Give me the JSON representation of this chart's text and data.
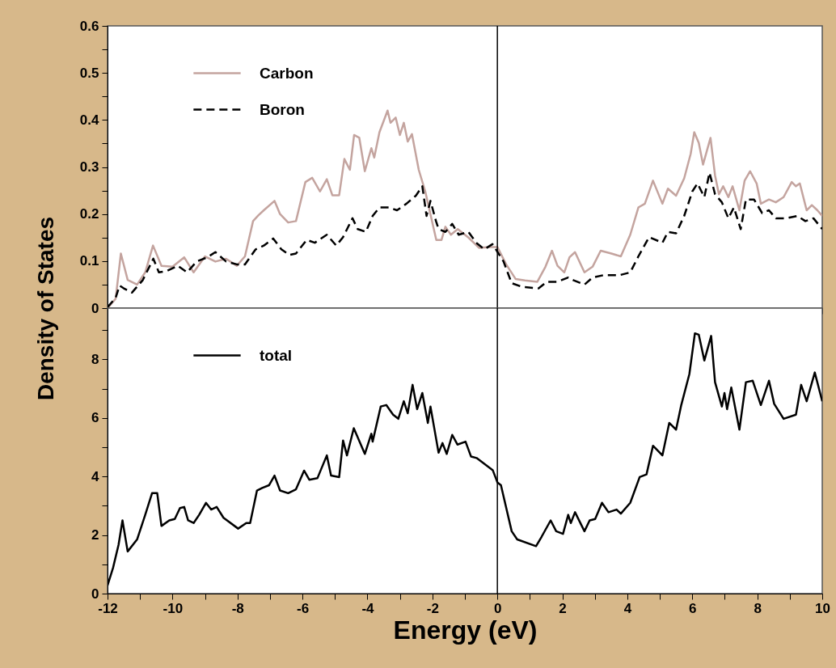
{
  "chart_data": [
    {
      "type": "line",
      "ylabel": "Density of States",
      "legend": "top left",
      "tick_labels": "y",
      "xlim": [
        -12,
        10
      ],
      "ylim": [
        0,
        0.6
      ],
      "xticks": [
        -12,
        {
          "value": -11,
          "label": null
        },
        -10,
        {
          "value": -9,
          "label": null
        },
        -8,
        {
          "value": -7,
          "label": null
        },
        -6,
        {
          "value": -5,
          "label": null
        },
        -4,
        {
          "value": -3,
          "label": null
        },
        -2,
        {
          "value": -1,
          "label": null
        },
        0,
        {
          "value": 1,
          "label": null
        },
        2,
        {
          "value": 3,
          "label": null
        },
        4,
        {
          "value": 5,
          "label": null
        },
        6,
        {
          "value": 7,
          "label": null
        },
        8,
        {
          "value": 9,
          "label": null
        },
        10
      ],
      "yticks": [
        0,
        {
          "value": 0.05,
          "label": null
        },
        0.1,
        {
          "value": 0.15,
          "label": null
        },
        0.2,
        {
          "value": 0.25,
          "label": null
        },
        0.3,
        {
          "value": 0.35,
          "label": null
        },
        0.4,
        {
          "value": 0.45,
          "label": null
        },
        0.5,
        {
          "value": 0.55,
          "label": null
        },
        0.6
      ],
      "ref_lines": [
        {
          "axis": "x",
          "value": 0,
          "color": "#000000"
        }
      ],
      "series": [
        {
          "name": "Carbon",
          "color": "#c4a49f",
          "line_style": "solid",
          "x": [
            -12,
            -11.75,
            -11.59,
            -11.38,
            -11.09,
            -10.84,
            -10.6,
            -10.34,
            -10,
            -9.64,
            -9.35,
            -9,
            -8.68,
            -8.35,
            -8.02,
            -7.77,
            -7.52,
            -7.36,
            -7.19,
            -6.86,
            -6.69,
            -6.44,
            -6.2,
            -5.91,
            -5.7,
            -5.46,
            -5.25,
            -5.08,
            -4.87,
            -4.71,
            -4.54,
            -4.41,
            -4.25,
            -4.08,
            -3.88,
            -3.79,
            -3.63,
            -3.38,
            -3.29,
            -3.13,
            -3,
            -2.88,
            -2.76,
            -2.63,
            -2.42,
            -2.22,
            -1.88,
            -1.72,
            -1.6,
            -1.43,
            -1.22,
            -0.89,
            -0.56,
            -0.23,
            0,
            0.27,
            0.56,
            0.85,
            1.23,
            1.48,
            1.68,
            1.85,
            2.06,
            2.22,
            2.39,
            2.68,
            2.93,
            3.18,
            3.51,
            3.8,
            4.09,
            4.34,
            4.54,
            4.79,
            5.08,
            5.25,
            5.5,
            5.75,
            5.95,
            6.06,
            6.2,
            6.33,
            6.56,
            6.7,
            6.82,
            6.95,
            7.11,
            7.24,
            7.45,
            7.61,
            7.78,
            7.98,
            8.11,
            8.36,
            8.57,
            8.81,
            9.06,
            9.19,
            9.31,
            9.52,
            9.68,
            9.85,
            10
          ],
          "values": [
            0,
            0.02,
            0.116,
            0.06,
            0.05,
            0.076,
            0.133,
            0.09,
            0.088,
            0.108,
            0.076,
            0.11,
            0.099,
            0.105,
            0.09,
            0.11,
            0.185,
            0.197,
            0.208,
            0.228,
            0.2,
            0.182,
            0.185,
            0.268,
            0.277,
            0.248,
            0.274,
            0.24,
            0.24,
            0.317,
            0.294,
            0.368,
            0.362,
            0.291,
            0.34,
            0.32,
            0.374,
            0.42,
            0.394,
            0.405,
            0.368,
            0.394,
            0.354,
            0.37,
            0.294,
            0.248,
            0.145,
            0.145,
            0.173,
            0.156,
            0.168,
            0.15,
            0.128,
            0.13,
            0.13,
            0.093,
            0.062,
            0.059,
            0.056,
            0.088,
            0.122,
            0.09,
            0.076,
            0.108,
            0.119,
            0.076,
            0.088,
            0.122,
            0.116,
            0.11,
            0.156,
            0.214,
            0.222,
            0.271,
            0.222,
            0.254,
            0.239,
            0.276,
            0.328,
            0.374,
            0.351,
            0.305,
            0.362,
            0.282,
            0.242,
            0.259,
            0.236,
            0.259,
            0.208,
            0.271,
            0.291,
            0.265,
            0.222,
            0.231,
            0.225,
            0.236,
            0.268,
            0.259,
            0.265,
            0.208,
            0.219,
            0.208,
            0.196
          ]
        },
        {
          "name": "Boron",
          "color": "#000000",
          "line_style": "dashed",
          "x": [
            -12,
            -11.75,
            -11.63,
            -11.5,
            -11.25,
            -10.92,
            -10.59,
            -10.42,
            -10.17,
            -9.84,
            -9.55,
            -9.26,
            -8.93,
            -8.68,
            -8.35,
            -8.02,
            -7.77,
            -7.44,
            -7.19,
            -6.9,
            -6.65,
            -6.4,
            -6.2,
            -5.87,
            -5.62,
            -5.25,
            -4.96,
            -4.75,
            -4.46,
            -4.3,
            -4.05,
            -3.84,
            -3.63,
            -3.34,
            -3.09,
            -2.8,
            -2.51,
            -2.31,
            -2.18,
            -2.06,
            -1.89,
            -1.81,
            -1.6,
            -1.39,
            -1.19,
            -0.89,
            -0.65,
            -0.4,
            -0.15,
            0,
            0.19,
            0.44,
            0.77,
            1.27,
            1.52,
            1.85,
            2.18,
            2.35,
            2.68,
            2.93,
            3.26,
            3.76,
            4.09,
            4.34,
            4.67,
            5.08,
            5.25,
            5.5,
            5.75,
            6,
            6.16,
            6.37,
            6.53,
            6.7,
            6.91,
            7.11,
            7.28,
            7.49,
            7.65,
            7.9,
            8.15,
            8.36,
            8.57,
            8.9,
            9.23,
            9.48,
            9.73,
            10
          ],
          "values": [
            0.002,
            0.022,
            0.048,
            0.042,
            0.033,
            0.059,
            0.105,
            0.076,
            0.079,
            0.09,
            0.076,
            0.099,
            0.108,
            0.119,
            0.099,
            0.093,
            0.093,
            0.125,
            0.133,
            0.148,
            0.125,
            0.113,
            0.116,
            0.145,
            0.139,
            0.156,
            0.133,
            0.151,
            0.191,
            0.168,
            0.162,
            0.196,
            0.214,
            0.214,
            0.208,
            0.222,
            0.239,
            0.259,
            0.196,
            0.228,
            0.185,
            0.168,
            0.162,
            0.179,
            0.156,
            0.162,
            0.139,
            0.125,
            0.136,
            0.12,
            0.099,
            0.053,
            0.045,
            0.042,
            0.056,
            0.056,
            0.065,
            0.059,
            0.05,
            0.065,
            0.07,
            0.07,
            0.076,
            0.11,
            0.151,
            0.139,
            0.162,
            0.159,
            0.196,
            0.248,
            0.265,
            0.236,
            0.288,
            0.242,
            0.225,
            0.191,
            0.214,
            0.168,
            0.231,
            0.231,
            0.202,
            0.208,
            0.191,
            0.191,
            0.196,
            0.185,
            0.191,
            0.168
          ]
        }
      ]
    },
    {
      "type": "line",
      "xlabel": "Energy (eV)",
      "legend": "top left",
      "xlim": [
        -12,
        10
      ],
      "ylim": [
        0,
        9.75
      ],
      "xticks": [
        -12,
        {
          "value": -11,
          "label": null
        },
        -10,
        {
          "value": -9,
          "label": null
        },
        -8,
        {
          "value": -7,
          "label": null
        },
        -6,
        {
          "value": -5,
          "label": null
        },
        -4,
        {
          "value": -3,
          "label": null
        },
        -2,
        {
          "value": -1,
          "label": null
        },
        0,
        {
          "value": 1,
          "label": null
        },
        2,
        {
          "value": 3,
          "label": null
        },
        4,
        {
          "value": 5,
          "label": null
        },
        6,
        {
          "value": 7,
          "label": null
        },
        8,
        {
          "value": 9,
          "label": null
        },
        10
      ],
      "yticks": [
        0,
        {
          "value": 1,
          "label": null
        },
        2,
        {
          "value": 3,
          "label": null
        },
        4,
        {
          "value": 5,
          "label": null
        },
        6,
        {
          "value": 7,
          "label": null
        },
        8,
        {
          "value": 9,
          "label": null
        }
      ],
      "ref_lines": [
        {
          "axis": "x",
          "value": 0,
          "color": "#000000"
        }
      ],
      "series": [
        {
          "name": "total",
          "color": "#000000",
          "line_style": "solid",
          "x": [
            -12,
            -11.83,
            -11.66,
            -11.54,
            -11.38,
            -11.09,
            -10.84,
            -10.63,
            -10.47,
            -10.34,
            -10.1,
            -9.93,
            -9.77,
            -9.64,
            -9.52,
            -9.35,
            -9.18,
            -8.97,
            -8.81,
            -8.64,
            -8.43,
            -7.98,
            -7.73,
            -7.61,
            -7.4,
            -7.24,
            -7.03,
            -6.86,
            -6.69,
            -6.44,
            -6.2,
            -5.95,
            -5.79,
            -5.54,
            -5.25,
            -5.12,
            -4.87,
            -4.75,
            -4.63,
            -4.42,
            -4.08,
            -3.88,
            -3.84,
            -3.59,
            -3.42,
            -3.21,
            -3.05,
            -2.88,
            -2.76,
            -2.61,
            -2.47,
            -2.31,
            -2.14,
            -2.06,
            -1.81,
            -1.69,
            -1.56,
            -1.39,
            -1.23,
            -0.98,
            -0.81,
            -0.64,
            -0.14,
            0,
            0.11,
            0.44,
            0.61,
            1.19,
            1.36,
            1.64,
            1.81,
            2.02,
            2.18,
            2.26,
            2.39,
            2.68,
            2.84,
            3.01,
            3.22,
            3.42,
            3.67,
            3.8,
            4.09,
            4.38,
            4.59,
            4.79,
            5.08,
            5.29,
            5.5,
            5.66,
            5.91,
            6.08,
            6.2,
            6.37,
            6.58,
            6.7,
            6.91,
            6.99,
            7.07,
            7.2,
            7.45,
            7.65,
            7.86,
            8.11,
            8.36,
            8.52,
            8.81,
            9.19,
            9.35,
            9.52,
            9.77,
            10
          ],
          "values": [
            0.28,
            0.88,
            1.67,
            2.5,
            1.44,
            1.85,
            2.69,
            3.43,
            3.43,
            2.31,
            2.5,
            2.55,
            2.92,
            2.96,
            2.5,
            2.41,
            2.69,
            3.1,
            2.87,
            2.96,
            2.59,
            2.22,
            2.41,
            2.41,
            3.52,
            3.61,
            3.7,
            4.03,
            3.52,
            3.43,
            3.56,
            4.2,
            3.89,
            3.94,
            4.72,
            4.03,
            3.98,
            5.23,
            4.72,
            5.65,
            4.77,
            5.46,
            5.19,
            6.39,
            6.44,
            6.11,
            5.97,
            6.57,
            6.16,
            7.13,
            6.3,
            6.85,
            5.83,
            6.39,
            4.81,
            5.14,
            4.77,
            5.42,
            5.09,
            5.19,
            4.68,
            4.63,
            4.21,
            3.8,
            3.7,
            2.13,
            1.85,
            1.62,
            1.94,
            2.5,
            2.13,
            2.04,
            2.69,
            2.41,
            2.78,
            2.13,
            2.5,
            2.55,
            3.1,
            2.78,
            2.87,
            2.73,
            3.1,
            3.98,
            4.07,
            5.05,
            4.72,
            5.83,
            5.6,
            6.44,
            7.5,
            8.89,
            8.84,
            7.96,
            8.8,
            7.22,
            6.39,
            6.85,
            6.3,
            7.04,
            5.6,
            7.22,
            7.27,
            6.44,
            7.27,
            6.48,
            5.97,
            6.11,
            7.13,
            6.57,
            7.55,
            6.57
          ]
        }
      ]
    }
  ]
}
